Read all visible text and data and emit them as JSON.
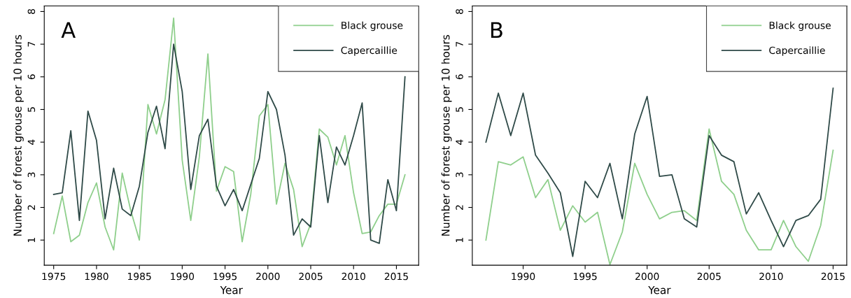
{
  "chart_data": [
    {
      "type": "line",
      "annotations": [
        "A"
      ],
      "xlabel": "Year",
      "ylabel": "Number of forest grouse per 10 hours",
      "x": [
        1975,
        1976,
        1977,
        1978,
        1979,
        1980,
        1981,
        1982,
        1983,
        1984,
        1985,
        1986,
        1987,
        1988,
        1989,
        1990,
        1991,
        1992,
        1993,
        1994,
        1995,
        1996,
        1997,
        1998,
        1999,
        2000,
        2001,
        2002,
        2003,
        2004,
        2005,
        2006,
        2007,
        2008,
        2009,
        2010,
        2011,
        2012,
        2013,
        2014,
        2015,
        2016
      ],
      "series": [
        {
          "name": "Black grouse",
          "color": "#8fcf8c",
          "values": [
            1.2,
            2.35,
            0.95,
            1.15,
            2.15,
            2.75,
            1.4,
            0.7,
            3.05,
            1.9,
            1.0,
            5.15,
            4.25,
            5.3,
            7.8,
            3.45,
            1.6,
            3.55,
            6.7,
            2.5,
            3.25,
            3.1,
            0.95,
            2.4,
            4.8,
            5.15,
            2.1,
            3.35,
            2.55,
            0.8,
            1.5,
            4.4,
            4.15,
            3.3,
            4.2,
            2.45,
            1.2,
            1.25,
            1.75,
            2.1,
            2.1,
            3.0
          ]
        },
        {
          "name": "Capercaillie",
          "color": "#2f4a48",
          "values": [
            2.4,
            2.45,
            4.35,
            1.6,
            4.95,
            4.05,
            1.65,
            3.2,
            1.95,
            1.75,
            2.65,
            4.3,
            5.1,
            3.8,
            7.0,
            5.55,
            2.55,
            4.2,
            4.7,
            2.65,
            2.05,
            2.55,
            1.9,
            2.7,
            3.5,
            5.55,
            5.0,
            3.6,
            1.15,
            1.65,
            1.4,
            4.2,
            2.15,
            3.85,
            3.3,
            4.2,
            5.2,
            1.0,
            0.9,
            2.85,
            1.9,
            6.0
          ]
        }
      ],
      "xlim": [
        1973.9,
        2017.6
      ],
      "xticks": [
        1975,
        1980,
        1985,
        1990,
        1995,
        2000,
        2005,
        2010,
        2015
      ],
      "ylim": [
        0.23,
        8.17
      ],
      "yticks": [
        1,
        2,
        3,
        4,
        5,
        6,
        7,
        8
      ],
      "legend": "top right",
      "grid": false
    },
    {
      "type": "line",
      "annotations": [
        "B"
      ],
      "xlabel": "Year",
      "ylabel": "Number of forest grouse per 10 hours",
      "x": [
        1987,
        1988,
        1989,
        1990,
        1991,
        1992,
        1993,
        1994,
        1995,
        1996,
        1997,
        1998,
        1999,
        2000,
        2001,
        2002,
        2003,
        2004,
        2005,
        2006,
        2007,
        2008,
        2009,
        2010,
        2011,
        2012,
        2013,
        2014,
        2015
      ],
      "series": [
        {
          "name": "Black grouse",
          "color": "#8fcf8c",
          "values": [
            1.0,
            3.4,
            3.3,
            3.55,
            2.3,
            2.85,
            1.3,
            2.05,
            1.55,
            1.85,
            0.25,
            1.25,
            3.35,
            2.4,
            1.65,
            1.85,
            1.9,
            1.6,
            4.4,
            2.8,
            2.4,
            1.3,
            0.7,
            0.7,
            1.6,
            0.8,
            0.35,
            1.45,
            3.75
          ]
        },
        {
          "name": "Capercaillie",
          "color": "#2f4a48",
          "values": [
            4.0,
            5.5,
            4.2,
            5.5,
            3.6,
            3.05,
            2.45,
            0.5,
            2.8,
            2.3,
            3.35,
            1.65,
            4.25,
            5.4,
            2.95,
            3.0,
            1.65,
            1.4,
            4.2,
            3.6,
            3.4,
            1.8,
            2.45,
            1.6,
            0.8,
            1.6,
            1.75,
            2.25,
            5.65
          ]
        }
      ],
      "xlim": [
        1985.9,
        2016.1
      ],
      "xticks": [
        1990,
        1995,
        2000,
        2005,
        2010,
        2015
      ],
      "ylim": [
        0.23,
        8.17
      ],
      "yticks": [
        1,
        2,
        3,
        4,
        5,
        6,
        7,
        8
      ],
      "legend": "top right",
      "grid": false
    }
  ]
}
